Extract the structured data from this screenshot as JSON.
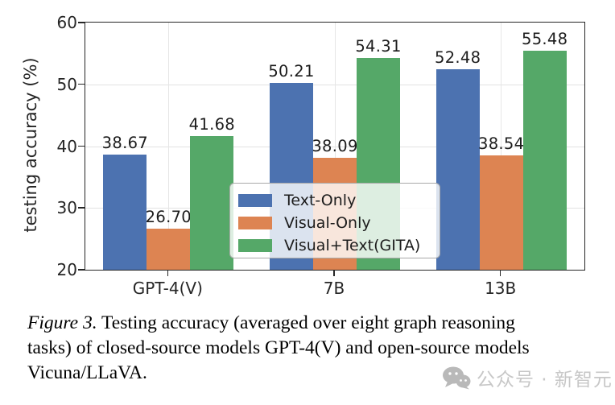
{
  "chart_data": {
    "type": "bar",
    "categories": [
      "GPT-4(V)",
      "7B",
      "13B"
    ],
    "series": [
      {
        "name": "Text-Only",
        "color": "#4C72B0",
        "values": [
          38.67,
          50.21,
          52.48
        ]
      },
      {
        "name": "Visual-Only",
        "color": "#DD8452",
        "values": [
          26.7,
          38.09,
          38.54
        ]
      },
      {
        "name": "Visual+Text(GITA)",
        "color": "#55A868",
        "values": [
          41.68,
          54.31,
          55.48
        ]
      }
    ],
    "title": "",
    "xlabel": "",
    "ylabel": "testing accuracy (%)",
    "ylim": [
      20,
      60
    ],
    "yticks": [
      20,
      30,
      40,
      50,
      60
    ],
    "grid": true,
    "bar_value_labels": true,
    "legend_position": "center-inside"
  },
  "caption": {
    "label": "Figure 3.",
    "line1_rest": " Testing accuracy (averaged over eight graph reasoning",
    "line2": "tasks) of closed-source models GPT-4(V) and open-source models",
    "line3": "Vicuna/LLaVA."
  },
  "watermark": {
    "icon": "wechat-icon",
    "text": "公众号 · 新智元",
    "color": "#c7c7c7"
  }
}
